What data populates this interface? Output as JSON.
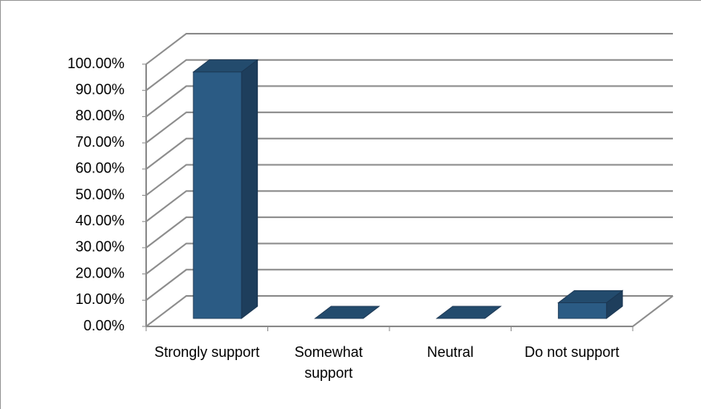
{
  "chart_data": {
    "type": "bar3d",
    "categories": [
      "Strongly support",
      "Somewhat support",
      "Neutral",
      "Do not support"
    ],
    "values": [
      94,
      0,
      0,
      6
    ],
    "color": "#2b5b84",
    "ylim": [
      0,
      100
    ],
    "yticks": [
      {
        "value": 0,
        "label": "0.00%"
      },
      {
        "value": 10,
        "label": "10.00%"
      },
      {
        "value": 20,
        "label": "20.00%"
      },
      {
        "value": 30,
        "label": "30.00%"
      },
      {
        "value": 40,
        "label": "40.00%"
      },
      {
        "value": 50,
        "label": "50.00%"
      },
      {
        "value": 60,
        "label": "60.00%"
      },
      {
        "value": 70,
        "label": "70.00%"
      },
      {
        "value": 80,
        "label": "80.00%"
      },
      {
        "value": 90,
        "label": "90.00%"
      },
      {
        "value": 100,
        "label": "100.00%"
      }
    ],
    "grid": true
  }
}
